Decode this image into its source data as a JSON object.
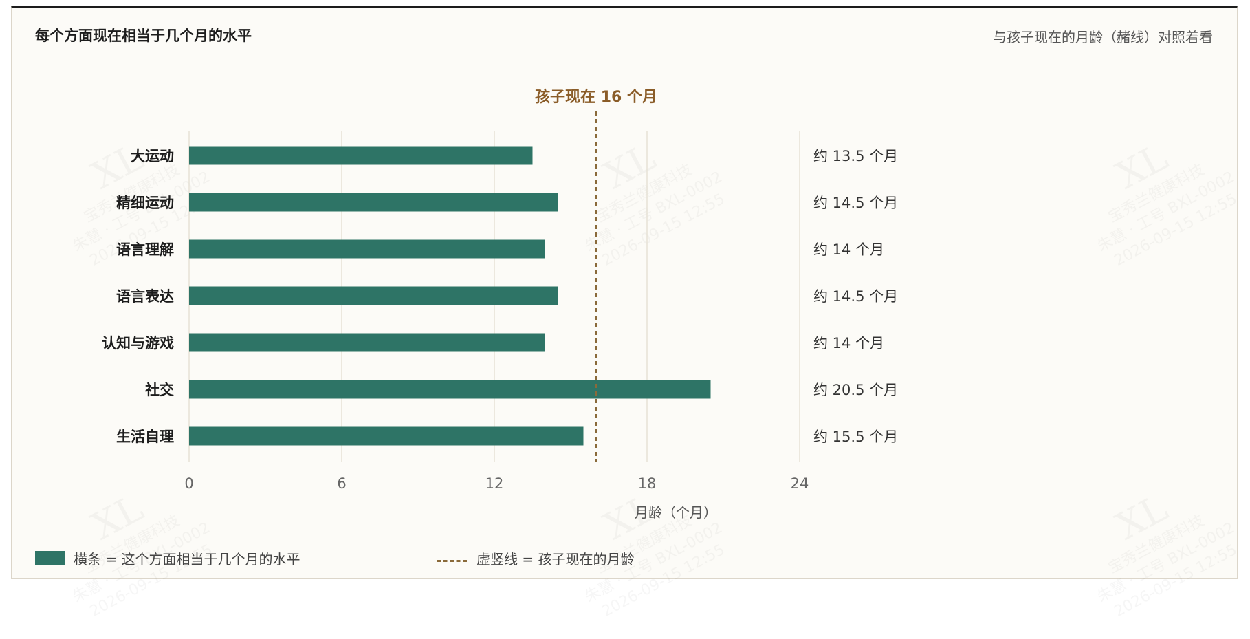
{
  "header": {
    "title": "每个方面现在相当于几个月的水平",
    "subtitle": "与孩子现在的月龄（赭线）对照着看"
  },
  "watermark": {
    "logo": "XL",
    "company": "宝秀兰健康科技",
    "user": "朱慧 · 工号 BXL-0002",
    "time": "2026-09-15 12:55"
  },
  "chart_data": {
    "type": "bar",
    "orientation": "horizontal",
    "categories": [
      "大运动",
      "精细运动",
      "语言理解",
      "语言表达",
      "认知与游戏",
      "社交",
      "生活自理"
    ],
    "values": [
      13.5,
      14.5,
      14,
      14.5,
      14,
      20.5,
      15.5
    ],
    "value_labels": [
      "约 13.5 个月",
      "约 14.5 个月",
      "约 14 个月",
      "约 14.5 个月",
      "约 14 个月",
      "约 20.5 个月",
      "约 15.5 个月"
    ],
    "xlim": [
      0,
      24
    ],
    "x_ticks": [
      0,
      6,
      12,
      18,
      24
    ],
    "xlabel": "月龄（个月）",
    "reference_line": {
      "value": 16,
      "label": "孩子现在 16 个月"
    },
    "grid": "vertical",
    "bar_color": "#2e7466",
    "reference_color": "#8a6a3a"
  },
  "legend": {
    "bar_text": "横条 = 这个方面相当于几个月的水平",
    "line_text": "虚竖线 = 孩子现在的月龄"
  }
}
